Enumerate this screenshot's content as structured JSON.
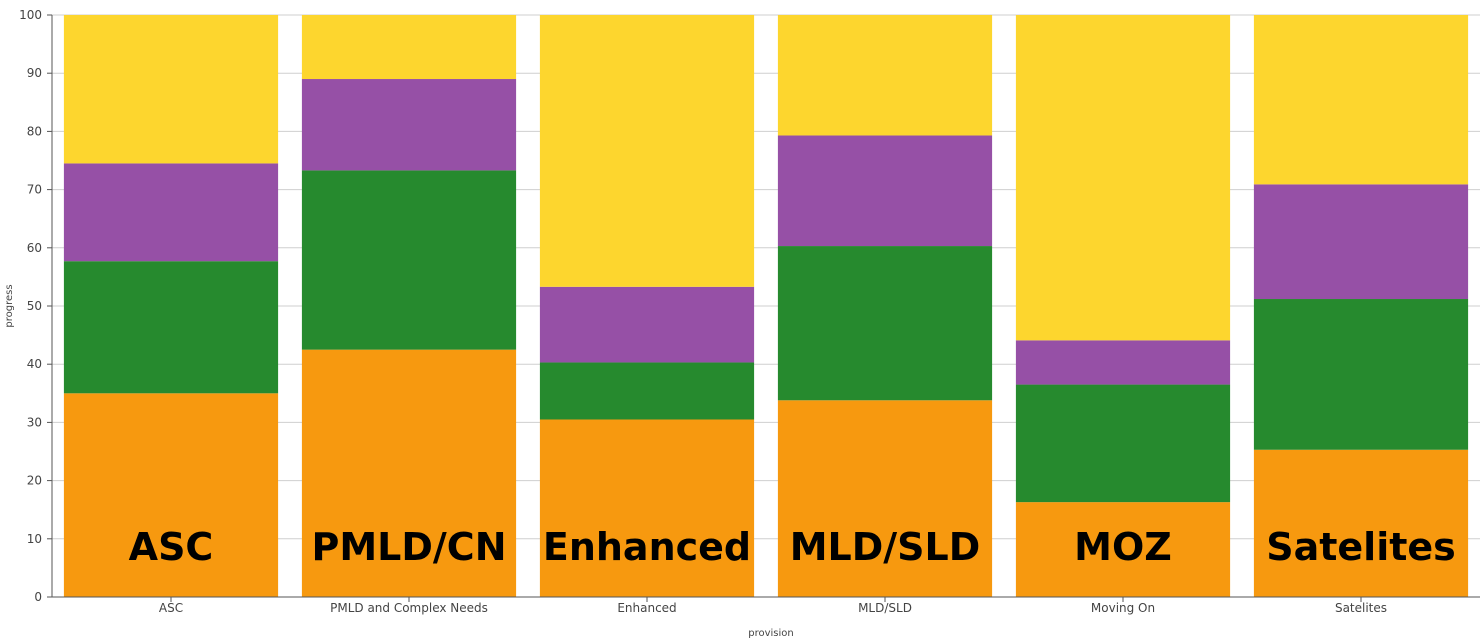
{
  "chart_data": {
    "type": "bar",
    "stacked": true,
    "title": "",
    "xlabel": "provision",
    "ylabel": "progress",
    "ylim": [
      0,
      100
    ],
    "yticks": [
      0,
      10,
      20,
      30,
      40,
      50,
      60,
      70,
      80,
      90,
      100
    ],
    "grid": true,
    "legend": "none",
    "categories": [
      "ASC",
      "PMLD and Complex Needs",
      "Enhanced",
      "MLD/SLD",
      "Moving On",
      "Satelites"
    ],
    "bar_labels": [
      "ASC",
      "PMLD/CN",
      "Enhanced",
      "MLD/SLD",
      "MOZ",
      "Satelites"
    ],
    "series": [
      {
        "color": "#f7990f",
        "values": [
          35.0,
          42.5,
          30.5,
          33.8,
          16.3,
          25.3
        ]
      },
      {
        "color": "#268a2e",
        "values": [
          22.7,
          30.8,
          9.8,
          26.5,
          20.2,
          25.9
        ]
      },
      {
        "color": "#9650a6",
        "values": [
          16.8,
          15.7,
          13.0,
          19.0,
          7.6,
          19.7
        ]
      },
      {
        "color": "#fdd62e",
        "values": [
          25.5,
          11.0,
          46.7,
          20.7,
          55.9,
          29.1
        ]
      }
    ]
  }
}
